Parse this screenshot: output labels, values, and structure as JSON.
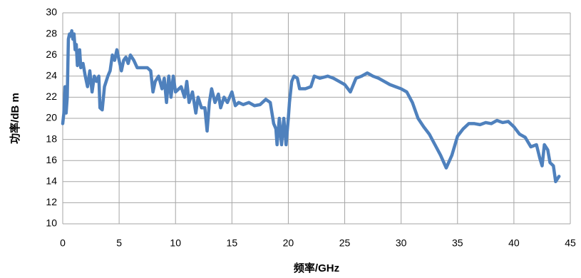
{
  "chart_data": {
    "type": "line",
    "xlabel": "频率/GHz",
    "ylabel": "功率/dB m",
    "color": "#4f81bd",
    "grid": true,
    "xlim": [
      0,
      45
    ],
    "xticks": [
      0,
      5,
      10,
      15,
      20,
      25,
      30,
      35,
      40,
      45
    ],
    "ylim": [
      10,
      30
    ],
    "yticks": [
      10,
      12,
      14,
      16,
      18,
      20,
      22,
      24,
      26,
      28,
      30
    ],
    "x": [
      0.0,
      0.1,
      0.2,
      0.3,
      0.4,
      0.5,
      0.6,
      0.7,
      0.8,
      0.9,
      1.0,
      1.1,
      1.2,
      1.3,
      1.5,
      1.6,
      1.8,
      2.0,
      2.2,
      2.4,
      2.6,
      2.8,
      3.0,
      3.2,
      3.3,
      3.5,
      3.7,
      4.0,
      4.2,
      4.4,
      4.6,
      4.8,
      5.0,
      5.2,
      5.4,
      5.6,
      5.8,
      6.0,
      6.3,
      6.6,
      7.0,
      7.5,
      7.8,
      8.0,
      8.2,
      8.5,
      8.8,
      9.0,
      9.2,
      9.4,
      9.6,
      9.8,
      10.0,
      10.5,
      10.8,
      11.0,
      11.2,
      11.5,
      11.8,
      12.0,
      12.3,
      12.6,
      12.8,
      13.0,
      13.2,
      13.5,
      13.8,
      14.0,
      14.3,
      14.6,
      15.0,
      15.3,
      15.6,
      16.0,
      16.5,
      17.0,
      17.5,
      18.0,
      18.4,
      18.7,
      18.9,
      19.0,
      19.2,
      19.4,
      19.6,
      19.8,
      20.0,
      20.1,
      20.3,
      20.5,
      20.8,
      21.0,
      21.5,
      22.0,
      22.3,
      22.8,
      23.5,
      24.0,
      24.5,
      25.0,
      25.5,
      26.0,
      26.5,
      27.0,
      27.5,
      28.0,
      28.5,
      29.0,
      29.5,
      30.0,
      30.5,
      31.0,
      31.5,
      32.0,
      32.5,
      33.0,
      33.5,
      34.0,
      34.5,
      35.0,
      35.5,
      36.0,
      36.5,
      37.0,
      37.5,
      38.0,
      38.5,
      39.0,
      39.5,
      40.0,
      40.5,
      41.0,
      41.5,
      42.0,
      42.3,
      42.5,
      42.7,
      43.0,
      43.2,
      43.5,
      43.7,
      44.0
    ],
    "values": [
      19.5,
      20.5,
      23.0,
      20.5,
      22.0,
      27.5,
      28.0,
      27.8,
      28.3,
      27.5,
      28.0,
      26.5,
      27.0,
      25.0,
      26.5,
      24.8,
      25.2,
      24.0,
      23.0,
      24.5,
      22.5,
      24.0,
      23.5,
      24.0,
      21.0,
      20.8,
      23.0,
      24.0,
      24.5,
      26.0,
      25.5,
      26.5,
      25.5,
      24.5,
      25.5,
      25.8,
      25.2,
      26.0,
      25.5,
      24.8,
      24.8,
      24.8,
      24.5,
      22.5,
      23.5,
      24.0,
      22.8,
      23.8,
      21.5,
      24.0,
      22.0,
      24.0,
      22.5,
      23.0,
      22.0,
      23.5,
      21.5,
      22.5,
      20.5,
      22.0,
      21.0,
      21.0,
      18.8,
      21.5,
      22.8,
      21.5,
      22.3,
      21.0,
      22.0,
      21.5,
      22.5,
      21.2,
      21.5,
      21.3,
      21.5,
      21.2,
      21.3,
      21.8,
      21.5,
      19.5,
      19.0,
      17.5,
      20.0,
      17.5,
      20.0,
      17.5,
      20.0,
      21.5,
      23.5,
      24.0,
      23.8,
      22.8,
      22.8,
      23.0,
      24.0,
      23.8,
      24.0,
      23.8,
      23.5,
      23.2,
      22.5,
      23.8,
      24.0,
      24.3,
      24.0,
      23.8,
      23.5,
      23.2,
      23.0,
      22.8,
      22.5,
      21.5,
      20.0,
      19.2,
      18.5,
      17.5,
      16.5,
      15.3,
      16.5,
      18.3,
      19.0,
      19.5,
      19.5,
      19.4,
      19.6,
      19.5,
      19.8,
      19.6,
      19.7,
      19.2,
      18.5,
      18.2,
      17.3,
      17.5,
      16.2,
      15.5,
      17.5,
      17.0,
      15.8,
      15.5,
      14.0,
      14.5
    ]
  }
}
